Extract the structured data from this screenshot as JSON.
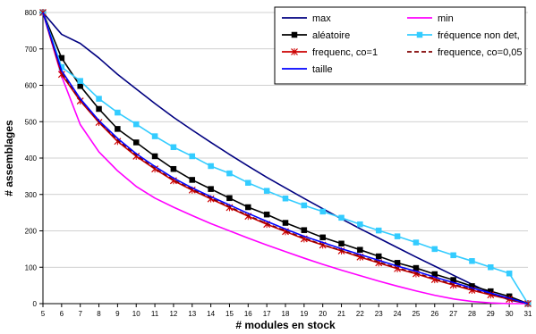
{
  "chart_data": {
    "type": "line",
    "title": "",
    "xlabel": "# modules en stock",
    "ylabel": "# assemblages",
    "xlim": [
      5,
      31
    ],
    "ylim": [
      0,
      800
    ],
    "x_ticks": [
      5,
      6,
      7,
      8,
      9,
      10,
      11,
      12,
      13,
      14,
      15,
      16,
      17,
      18,
      19,
      20,
      21,
      22,
      23,
      24,
      25,
      26,
      27,
      28,
      29,
      30,
      31
    ],
    "y_ticks": [
      0,
      100,
      200,
      300,
      400,
      500,
      600,
      700,
      800
    ],
    "grid": "horizontal",
    "legend_position": "top-right",
    "x": [
      5,
      6,
      7,
      8,
      9,
      10,
      11,
      12,
      13,
      14,
      15,
      16,
      17,
      18,
      19,
      20,
      21,
      22,
      23,
      24,
      25,
      26,
      27,
      28,
      29,
      30,
      31
    ],
    "series": [
      {
        "name": "max",
        "color": "#000080",
        "marker": "none",
        "dash": "solid",
        "values": [
          800,
          740,
          715,
          675,
          630,
          590,
          550,
          512,
          477,
          443,
          410,
          378,
          347,
          318,
          289,
          261,
          233,
          206,
          180,
          154,
          128,
          103,
          78,
          53,
          29,
          10,
          0
        ]
      },
      {
        "name": "min",
        "color": "#ff00ff",
        "marker": "none",
        "dash": "solid",
        "values": [
          800,
          625,
          492,
          417,
          365,
          322,
          290,
          265,
          242,
          220,
          200,
          180,
          161,
          143,
          125,
          108,
          92,
          77,
          62,
          48,
          35,
          23,
          13,
          6,
          2,
          0,
          0
        ]
      },
      {
        "name": "aléatoire",
        "color": "#000000",
        "marker": "square",
        "dash": "solid",
        "values": [
          800,
          675,
          598,
          535,
          480,
          443,
          405,
          370,
          340,
          315,
          290,
          265,
          245,
          222,
          202,
          182,
          165,
          148,
          130,
          112,
          98,
          81,
          65,
          48,
          34,
          20,
          0
        ]
      },
      {
        "name": "fréquence non det,",
        "color": "#33ccff",
        "marker": "square",
        "dash": "solid",
        "values": [
          800,
          650,
          612,
          563,
          525,
          493,
          460,
          430,
          405,
          378,
          358,
          332,
          310,
          289,
          270,
          253,
          236,
          218,
          201,
          185,
          168,
          150,
          133,
          117,
          100,
          83,
          0
        ]
      },
      {
        "name": "frequenc, co=1",
        "color": "#cc0000",
        "marker": "x",
        "dash": "solid",
        "values": [
          800,
          630,
          557,
          498,
          446,
          405,
          370,
          338,
          312,
          288,
          264,
          240,
          218,
          198,
          178,
          161,
          145,
          128,
          112,
          96,
          82,
          66,
          51,
          37,
          24,
          12,
          0
        ]
      },
      {
        "name": "frequence, co=0,05",
        "color": "#800000",
        "marker": "none",
        "dash": "dashed",
        "values": [
          800,
          633,
          560,
          500,
          449,
          408,
          372,
          340,
          314,
          290,
          266,
          242,
          220,
          200,
          180,
          162,
          146,
          130,
          114,
          98,
          84,
          68,
          53,
          39,
          26,
          13,
          0
        ]
      },
      {
        "name": "taille",
        "color": "#0000ff",
        "marker": "none",
        "dash": "solid",
        "values": [
          800,
          640,
          563,
          503,
          454,
          412,
          377,
          345,
          318,
          294,
          271,
          248,
          226,
          205,
          185,
          168,
          151,
          135,
          119,
          103,
          89,
          73,
          58,
          43,
          29,
          15,
          0
        ]
      }
    ]
  }
}
